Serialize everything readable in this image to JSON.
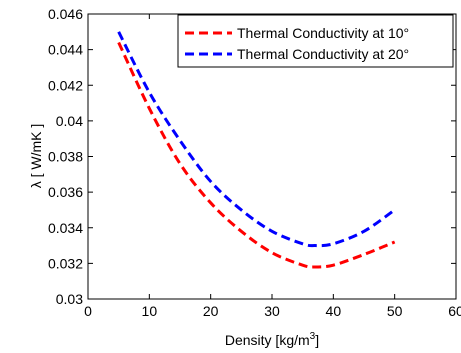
{
  "chart_data": {
    "type": "line",
    "title": "",
    "xlabel": "Density [kg/m",
    "xlabel_sup": "3",
    "xlabel_end": "]",
    "ylabel": "λ [ W/mK ]",
    "xlim": [
      0,
      60
    ],
    "ylim": [
      0.03,
      0.046
    ],
    "x_ticks": [
      "0",
      "10",
      "20",
      "30",
      "40",
      "50",
      "60"
    ],
    "y_ticks": [
      "0.03",
      "0.032",
      "0.034",
      "0.036",
      "0.038",
      "0.04",
      "0.042",
      "0.044",
      "0.046"
    ],
    "grid": false,
    "legend_position": "top-right",
    "series": [
      {
        "name": "Thermal Conductivity at 10°",
        "color": "#ff0000",
        "style": "dashed",
        "x": [
          5,
          10,
          15,
          20,
          25,
          30,
          35,
          37,
          40,
          45,
          50
        ],
        "y": [
          0.0444,
          0.0407,
          0.0376,
          0.0354,
          0.0338,
          0.0326,
          0.0319,
          0.0318,
          0.0319,
          0.0325,
          0.0332
        ]
      },
      {
        "name": "Thermal Conductivity at 20°",
        "color": "#0000ff",
        "style": "dashed",
        "x": [
          5,
          10,
          15,
          20,
          25,
          30,
          35,
          37,
          40,
          45,
          50
        ],
        "y": [
          0.045,
          0.0416,
          0.0389,
          0.0366,
          0.035,
          0.0338,
          0.0331,
          0.033,
          0.0331,
          0.0338,
          0.035
        ]
      }
    ]
  }
}
